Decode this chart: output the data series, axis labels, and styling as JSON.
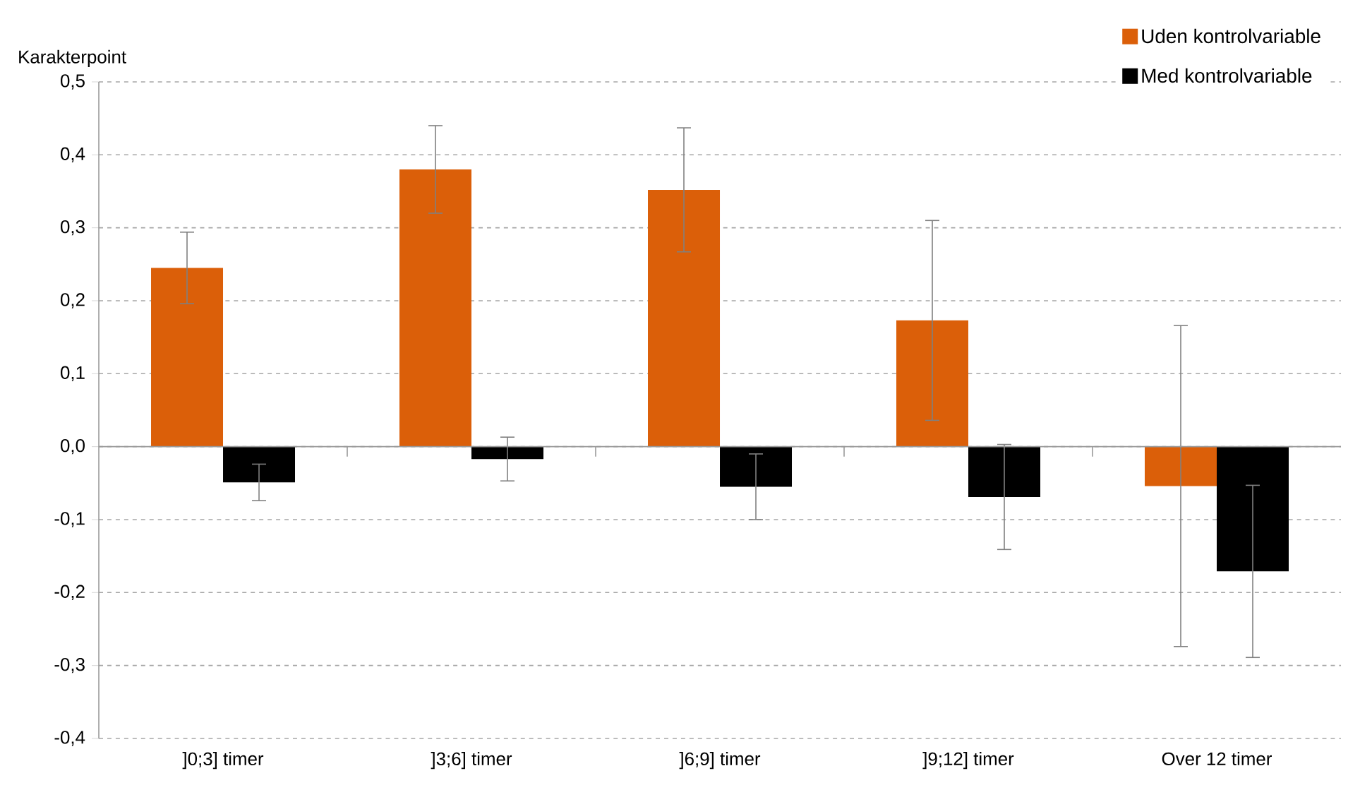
{
  "chart_data": {
    "type": "bar",
    "ylabel": "Karakterpoint",
    "categories": [
      "]0;3] timer",
      "]3;6] timer",
      "]6;9] timer",
      "]9;12] timer",
      "Over 12 timer"
    ],
    "series": [
      {
        "name": "Uden kontrolvariable",
        "color": "#db5f09",
        "values": [
          0.245,
          0.38,
          0.352,
          0.173,
          -0.054
        ],
        "errors": [
          0.049,
          0.06,
          0.085,
          0.137,
          0.22
        ]
      },
      {
        "name": "Med kontrolvariable",
        "color": "#000000",
        "values": [
          -0.049,
          -0.017,
          -0.055,
          -0.069,
          -0.171
        ],
        "errors": [
          0.025,
          0.03,
          0.045,
          0.072,
          0.118
        ]
      }
    ],
    "ylim": [
      -0.4,
      0.5
    ],
    "yticks": [
      {
        "value": -0.4,
        "label": "-0,4"
      },
      {
        "value": -0.3,
        "label": "-0,3"
      },
      {
        "value": -0.2,
        "label": "-0,2"
      },
      {
        "value": -0.1,
        "label": "-0,1"
      },
      {
        "value": 0,
        "label": "0,0"
      },
      {
        "value": 0.1,
        "label": "0,1"
      },
      {
        "value": 0.2,
        "label": "0,2"
      },
      {
        "value": 0.3,
        "label": "0,3"
      },
      {
        "value": 0.4,
        "label": "0,4"
      },
      {
        "value": 0.5,
        "label": "0,5"
      }
    ],
    "grid": "y",
    "legend": "top right"
  }
}
